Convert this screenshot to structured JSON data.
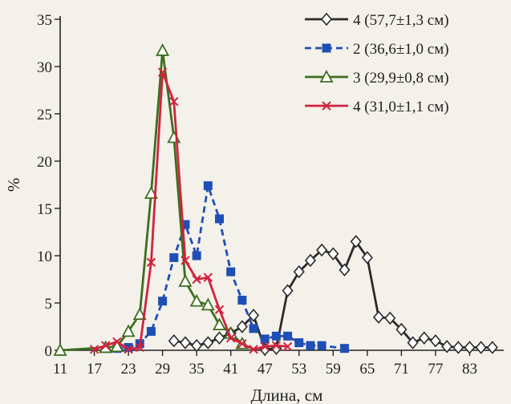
{
  "chart_data": {
    "type": "line",
    "xlabel": "Длина, см",
    "ylabel": "%",
    "xlim": [
      11,
      89
    ],
    "ylim": [
      0,
      35
    ],
    "x_ticks": [
      11,
      17,
      23,
      29,
      35,
      41,
      47,
      53,
      59,
      65,
      71,
      77,
      83
    ],
    "y_ticks": [
      0,
      5,
      10,
      15,
      20,
      25,
      30,
      35
    ],
    "grid": false,
    "legend_position": "top-right",
    "series": [
      {
        "name": "4 (57,7±1,3 см)",
        "color": "#2b2b2b",
        "marker": "diamond",
        "dash": "solid",
        "x": [
          31,
          33,
          35,
          37,
          39,
          41,
          43,
          45,
          47,
          49,
          51,
          53,
          55,
          57,
          59,
          61,
          63,
          65,
          67,
          69,
          71,
          73,
          75,
          77,
          79,
          81,
          83,
          85,
          87
        ],
        "y": [
          1.0,
          0.8,
          0.5,
          0.8,
          1.3,
          1.8,
          2.5,
          3.7,
          0.1,
          0.2,
          6.3,
          8.3,
          9.5,
          10.6,
          10.2,
          8.5,
          11.5,
          9.8,
          3.5,
          3.4,
          2.2,
          0.8,
          1.3,
          1.0,
          0.4,
          0.3,
          0.3,
          0.3,
          0.3
        ]
      },
      {
        "name": "2 (36,6±1,0 см)",
        "color": "#1f4fb5",
        "marker": "square",
        "dash": "dashed",
        "x": [
          21,
          23,
          25,
          27,
          29,
          31,
          33,
          35,
          37,
          39,
          41,
          43,
          45,
          47,
          49,
          51,
          53,
          55,
          57,
          61
        ],
        "y": [
          0.2,
          0.3,
          0.7,
          2.0,
          5.2,
          9.8,
          13.3,
          10.0,
          17.4,
          13.9,
          8.3,
          5.3,
          2.3,
          1.2,
          1.5,
          1.5,
          0.8,
          0.5,
          0.5,
          0.2
        ]
      },
      {
        "name": "3 (29,9±0,8 см)",
        "color": "#3e6e1e",
        "marker": "triangle",
        "dash": "solid",
        "x": [
          11,
          19,
          21,
          23,
          25,
          27,
          29,
          31,
          33,
          35,
          37,
          39,
          41,
          43
        ],
        "y": [
          0,
          0.3,
          0.4,
          2.0,
          3.8,
          16.6,
          31.7,
          22.5,
          7.3,
          5.2,
          4.8,
          2.7,
          1.8,
          0.7
        ]
      },
      {
        "name": "4 (31,0±1,1 см)",
        "color": "#d0233f",
        "marker": "x",
        "dash": "solid",
        "x": [
          17,
          19,
          21,
          23,
          25,
          27,
          29,
          31,
          33,
          35,
          37,
          39,
          41,
          43,
          45,
          47,
          49,
          51
        ],
        "y": [
          0.1,
          0.5,
          0.9,
          0.1,
          0.3,
          9.3,
          29.4,
          26.3,
          9.5,
          7.5,
          7.7,
          4.3,
          1.3,
          0.7,
          0.1,
          0.4,
          0.5,
          0.4
        ]
      }
    ]
  }
}
